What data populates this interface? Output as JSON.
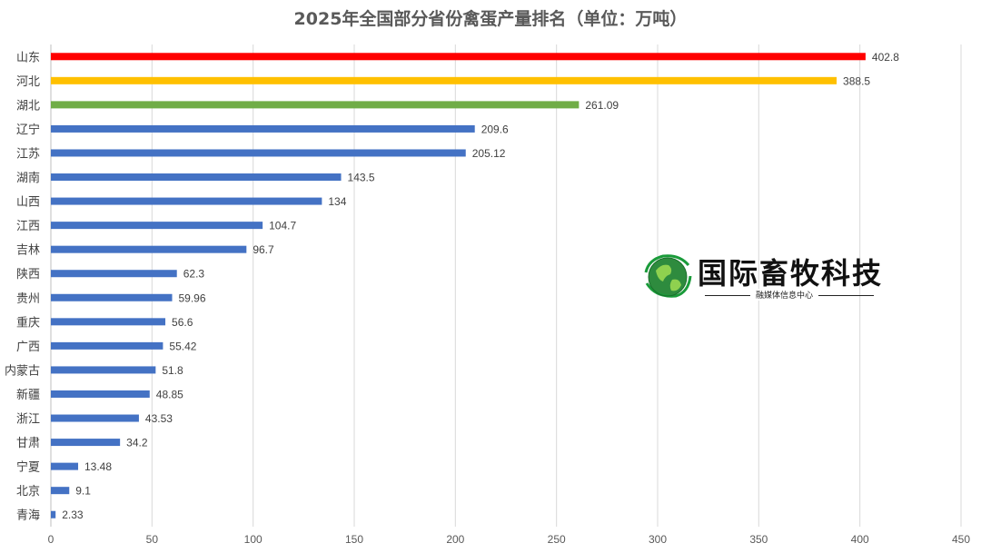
{
  "chart_data": {
    "type": "bar",
    "orientation": "horizontal",
    "title": "2025年全国部分省份禽蛋产量排名（单位：万吨）",
    "categories": [
      "山东",
      "河北",
      "湖北",
      "辽宁",
      "江苏",
      "湖南",
      "山西",
      "江西",
      "吉林",
      "陕西",
      "贵州",
      "重庆",
      "广西",
      "内蒙古",
      "新疆",
      "浙江",
      "甘肃",
      "宁夏",
      "北京",
      "青海"
    ],
    "values": [
      402.8,
      388.5,
      261.09,
      209.6,
      205.12,
      143.5,
      134,
      104.7,
      96.7,
      62.3,
      59.96,
      56.6,
      55.42,
      51.8,
      48.85,
      43.53,
      34.2,
      13.48,
      9.1,
      2.33
    ],
    "value_labels": [
      "402.8",
      "388.5",
      "261.09",
      "209.6",
      "205.12",
      "143.5",
      "134",
      "104.7",
      "96.7",
      "62.3",
      "59.96",
      "56.6",
      "55.42",
      "51.8",
      "48.85",
      "43.53",
      "34.2",
      "13.48",
      "9.1",
      "2.33"
    ],
    "bar_colors": [
      "#ff0000",
      "#ffc000",
      "#70ad47",
      "#4472c4",
      "#4472c4",
      "#4472c4",
      "#4472c4",
      "#4472c4",
      "#4472c4",
      "#4472c4",
      "#4472c4",
      "#4472c4",
      "#4472c4",
      "#4472c4",
      "#4472c4",
      "#4472c4",
      "#4472c4",
      "#4472c4",
      "#4472c4",
      "#4472c4"
    ],
    "xlim": [
      0,
      450
    ],
    "x_ticks": [
      0,
      50,
      100,
      150,
      200,
      250,
      300,
      350,
      400,
      450
    ],
    "grid": "vertical",
    "legend": "none"
  },
  "watermark": {
    "title": "国际畜牧科技",
    "subtitle": "融媒体信息中心",
    "icon": "globe-icon"
  },
  "colors": {
    "gridline": "#d9d9d9",
    "axis": "#bfbfbf"
  }
}
